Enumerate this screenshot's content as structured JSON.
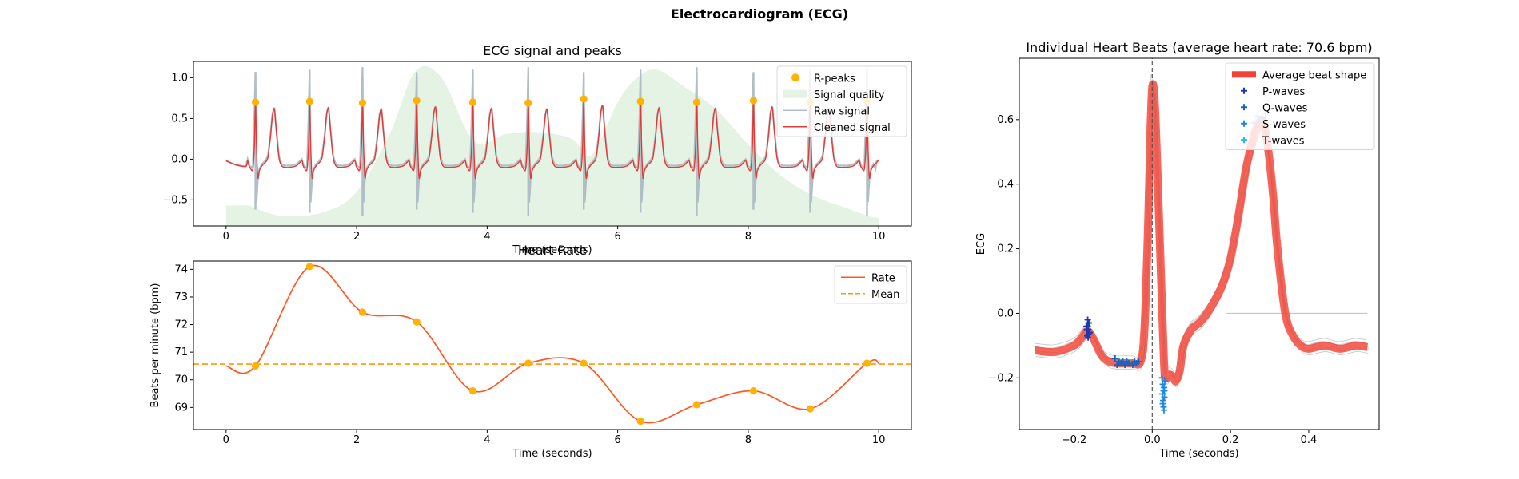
{
  "figure": {
    "suptitle": "Electrocardiogram (ECG)"
  },
  "chart_data": [
    {
      "id": "ecg",
      "type": "line",
      "title": "ECG signal and peaks",
      "xlabel": "Time (seconds)",
      "ylabel": "",
      "xlim": [
        -0.5,
        10.5
      ],
      "ylim": [
        -0.82,
        1.2
      ],
      "xticks": [
        0,
        2,
        4,
        6,
        8,
        10
      ],
      "yticks": [
        -0.5,
        0.0,
        0.5,
        1.0
      ],
      "ytick_labels": [
        "−0.5",
        "0.0",
        "0.5",
        "1.0"
      ],
      "legend": [
        "R-peaks",
        "Signal quality",
        "Raw signal",
        "Cleaned signal"
      ],
      "legend_position": "top-right",
      "grid": false,
      "colors": {
        "r_peaks": "#FFB300",
        "quality": "#E5F3E5",
        "raw": "#B0BEC5",
        "cleaned": "#E53935"
      },
      "r_peaks": {
        "x": [
          0.45,
          1.28,
          2.09,
          2.92,
          3.78,
          4.63,
          5.48,
          6.35,
          7.21,
          8.08,
          8.95,
          9.82
        ],
        "y": [
          0.7,
          0.71,
          0.69,
          0.72,
          0.7,
          0.69,
          0.74,
          0.71,
          0.7,
          0.72,
          0.7,
          0.72
        ]
      },
      "signal_quality": {
        "x": [
          0,
          0.1,
          0.35,
          0.5,
          0.9,
          1.5,
          2.0,
          2.5,
          2.9,
          3.3,
          3.8,
          4.3,
          4.8,
          5.3,
          5.6,
          6.0,
          6.3,
          6.6,
          7.0,
          7.5,
          8.0,
          8.5,
          9.0,
          9.5,
          9.85,
          10.0
        ],
        "y": [
          -0.57,
          -0.57,
          -0.57,
          -0.62,
          -0.7,
          -0.65,
          -0.4,
          0.3,
          1.08,
          1.0,
          0.22,
          0.31,
          0.33,
          0.25,
          0.05,
          0.7,
          1.0,
          1.1,
          0.9,
          0.62,
          0.18,
          -0.2,
          -0.45,
          -0.6,
          -0.7,
          -0.72
        ]
      },
      "beat_template": {
        "x": [
          -0.3,
          -0.2,
          -0.12,
          -0.1,
          -0.08,
          -0.04,
          -0.015,
          0.0,
          0.015,
          0.035,
          0.06,
          0.1,
          0.15,
          0.19,
          0.23,
          0.26,
          0.29,
          0.32,
          0.36,
          0.4,
          0.45,
          0.55
        ],
        "y": [
          -0.1,
          -0.08,
          -0.02,
          -0.08,
          -0.11,
          -0.12,
          0.2,
          0.72,
          0.2,
          -0.22,
          -0.14,
          -0.08,
          -0.04,
          0.02,
          0.28,
          0.55,
          0.63,
          0.35,
          0.02,
          -0.08,
          -0.1,
          -0.1
        ]
      }
    },
    {
      "id": "rate",
      "type": "line",
      "title": "Heart Rate",
      "xlabel": "Time (seconds)",
      "ylabel": "Beats per minute (bpm)",
      "xlim": [
        -0.5,
        10.5
      ],
      "ylim": [
        68.2,
        74.3
      ],
      "xticks": [
        0,
        2,
        4,
        6,
        8,
        10
      ],
      "yticks": [
        69,
        70,
        71,
        72,
        73,
        74
      ],
      "legend": [
        "Rate",
        "Mean"
      ],
      "legend_position": "top-right",
      "grid": false,
      "mean": 70.57,
      "colors": {
        "rate": "#FF5722",
        "mean": "#FF9800",
        "points": "#FFB300"
      },
      "x": [
        0.45,
        1.28,
        2.09,
        2.92,
        3.78,
        4.63,
        5.48,
        6.35,
        7.21,
        8.08,
        8.95,
        9.82
      ],
      "y": [
        70.5,
        74.1,
        72.45,
        72.1,
        69.6,
        70.6,
        70.6,
        68.5,
        69.1,
        69.6,
        68.95,
        70.6
      ]
    },
    {
      "id": "beats",
      "type": "line",
      "title": "Individual Heart Beats (average heart rate: 70.6 bpm)",
      "xlabel": "Time (seconds)",
      "ylabel": "ECG",
      "xlim": [
        -0.34,
        0.58
      ],
      "ylim": [
        -0.36,
        0.79
      ],
      "xticks": [
        -0.2,
        0.0,
        0.2,
        0.4
      ],
      "xtick_labels": [
        "−0.2",
        "0.0",
        "0.2",
        "0.4"
      ],
      "yticks": [
        -0.2,
        0.0,
        0.2,
        0.4,
        0.6
      ],
      "ytick_labels": [
        "−0.2",
        "0.0",
        "0.2",
        "0.4",
        "0.6"
      ],
      "legend": [
        "Average beat shape",
        "P-waves",
        "Q-waves",
        "S-waves",
        "T-waves"
      ],
      "legend_position": "top-right",
      "grid": false,
      "colors": {
        "average": "#F44336",
        "individual": "#9E9E9E",
        "p": "#1A3BAF",
        "q": "#1565C0",
        "s": "#1E88E5",
        "t": "#29B6F6",
        "onset": "#555555"
      },
      "average_beat": {
        "x": [
          -0.3,
          -0.25,
          -0.2,
          -0.18,
          -0.165,
          -0.15,
          -0.13,
          -0.11,
          -0.09,
          -0.07,
          -0.05,
          -0.03,
          -0.02,
          -0.01,
          -0.005,
          0.0,
          0.005,
          0.01,
          0.02,
          0.03,
          0.035,
          0.045,
          0.055,
          0.06,
          0.07,
          0.08,
          0.1,
          0.12,
          0.14,
          0.16,
          0.18,
          0.2,
          0.22,
          0.24,
          0.26,
          0.27,
          0.28,
          0.29,
          0.3,
          0.31,
          0.32,
          0.34,
          0.36,
          0.38,
          0.4,
          0.44,
          0.48,
          0.52,
          0.55
        ],
        "y": [
          -0.115,
          -0.12,
          -0.1,
          -0.075,
          -0.055,
          -0.08,
          -0.13,
          -0.15,
          -0.155,
          -0.155,
          -0.155,
          -0.15,
          -0.05,
          0.3,
          0.55,
          0.7,
          0.68,
          0.55,
          0.2,
          -0.15,
          -0.2,
          -0.19,
          -0.2,
          -0.21,
          -0.18,
          -0.1,
          -0.05,
          -0.03,
          0.0,
          0.04,
          0.09,
          0.17,
          0.3,
          0.45,
          0.55,
          0.58,
          0.6,
          0.56,
          0.47,
          0.35,
          0.2,
          0.0,
          -0.07,
          -0.1,
          -0.11,
          -0.1,
          -0.11,
          -0.1,
          -0.105
        ]
      },
      "individual_beats": [
        {
          "dx": 0.0,
          "dy": 0.01,
          "amp": 1.0
        },
        {
          "dx": 0.004,
          "dy": -0.01,
          "amp": 0.97
        },
        {
          "dx": -0.004,
          "dy": 0.015,
          "amp": 1.02
        },
        {
          "dx": 0.002,
          "dy": -0.02,
          "amp": 0.99
        },
        {
          "dx": -0.002,
          "dy": 0.02,
          "amp": 0.98
        },
        {
          "dx": 0.003,
          "dy": 0.0,
          "amp": 1.01
        }
      ],
      "p_waves": {
        "x": [
          -0.165,
          -0.162,
          -0.168,
          -0.164,
          -0.16,
          -0.166,
          -0.163,
          -0.161,
          -0.167,
          -0.165,
          -0.163,
          -0.164
        ],
        "y": [
          -0.02,
          -0.03,
          -0.04,
          -0.05,
          -0.06,
          -0.07,
          -0.03,
          -0.06,
          -0.05,
          -0.04,
          -0.065,
          -0.075
        ]
      },
      "q_waves": {
        "x": [
          -0.095,
          -0.09,
          -0.085,
          -0.08,
          -0.075,
          -0.07,
          -0.065,
          -0.06,
          -0.05,
          -0.045,
          -0.04,
          -0.035
        ],
        "y": [
          -0.14,
          -0.16,
          -0.15,
          -0.155,
          -0.15,
          -0.16,
          -0.15,
          -0.155,
          -0.16,
          -0.15,
          -0.155,
          -0.15
        ]
      },
      "s_waves": {
        "x": [
          0.025,
          0.027,
          0.029,
          0.031,
          0.026,
          0.028,
          0.03,
          0.032,
          0.027,
          0.029,
          0.03,
          0.031
        ],
        "y": [
          -0.2,
          -0.22,
          -0.24,
          -0.26,
          -0.25,
          -0.27,
          -0.23,
          -0.21,
          -0.28,
          -0.29,
          -0.3,
          -0.24
        ]
      },
      "t_waves": {
        "x": [
          0.26,
          0.27,
          0.28,
          0.29
        ],
        "y": [
          0.59,
          0.61,
          0.6,
          0.62
        ]
      },
      "baseline_segment": {
        "x": [
          0.19,
          0.55
        ],
        "y": [
          0.0,
          0.0
        ]
      },
      "onset_line_x": 0.0
    }
  ]
}
